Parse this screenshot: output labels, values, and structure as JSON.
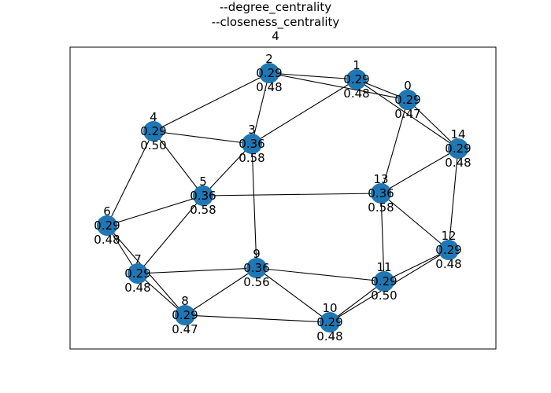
{
  "title": {
    "lines": [
      "--degree_centrality",
      "--closeness_centrality",
      "4"
    ]
  },
  "colors": {
    "node": "#1f77b4",
    "edge": "#000000",
    "frame": "#000000",
    "text": "#000000"
  },
  "graph": {
    "nodes": [
      {
        "id": "0",
        "degree": "0.29",
        "closeness": "0.47"
      },
      {
        "id": "1",
        "degree": "0.29",
        "closeness": "0.48"
      },
      {
        "id": "2",
        "degree": "0.29",
        "closeness": "0.48"
      },
      {
        "id": "3",
        "degree": "0.36",
        "closeness": "0.58"
      },
      {
        "id": "4",
        "degree": "0.29",
        "closeness": "0.50"
      },
      {
        "id": "5",
        "degree": "0.36",
        "closeness": "0.58"
      },
      {
        "id": "6",
        "degree": "0.29",
        "closeness": "0.48"
      },
      {
        "id": "7",
        "degree": "0.29",
        "closeness": "0.48"
      },
      {
        "id": "8",
        "degree": "0.29",
        "closeness": "0.47"
      },
      {
        "id": "9",
        "degree": "0.36",
        "closeness": "0.56"
      },
      {
        "id": "10",
        "degree": "0.29",
        "closeness": "0.48"
      },
      {
        "id": "11",
        "degree": "0.29",
        "closeness": "0.50"
      },
      {
        "id": "12",
        "degree": "0.29",
        "closeness": "0.48"
      },
      {
        "id": "13",
        "degree": "0.36",
        "closeness": "0.58"
      },
      {
        "id": "14",
        "degree": "0.29",
        "closeness": "0.48"
      }
    ],
    "edges": [
      [
        "0",
        "1"
      ],
      [
        "0",
        "2"
      ],
      [
        "0",
        "13"
      ],
      [
        "0",
        "14"
      ],
      [
        "1",
        "2"
      ],
      [
        "1",
        "3"
      ],
      [
        "1",
        "14"
      ],
      [
        "2",
        "3"
      ],
      [
        "2",
        "4"
      ],
      [
        "3",
        "4"
      ],
      [
        "3",
        "5"
      ],
      [
        "3",
        "9"
      ],
      [
        "4",
        "5"
      ],
      [
        "4",
        "6"
      ],
      [
        "5",
        "6"
      ],
      [
        "5",
        "7"
      ],
      [
        "5",
        "13"
      ],
      [
        "6",
        "7"
      ],
      [
        "6",
        "8"
      ],
      [
        "7",
        "8"
      ],
      [
        "7",
        "9"
      ],
      [
        "8",
        "9"
      ],
      [
        "8",
        "10"
      ],
      [
        "9",
        "10"
      ],
      [
        "9",
        "11"
      ],
      [
        "10",
        "11"
      ],
      [
        "10",
        "12"
      ],
      [
        "11",
        "12"
      ],
      [
        "11",
        "13"
      ],
      [
        "12",
        "13"
      ],
      [
        "12",
        "14"
      ],
      [
        "13",
        "14"
      ]
    ]
  }
}
